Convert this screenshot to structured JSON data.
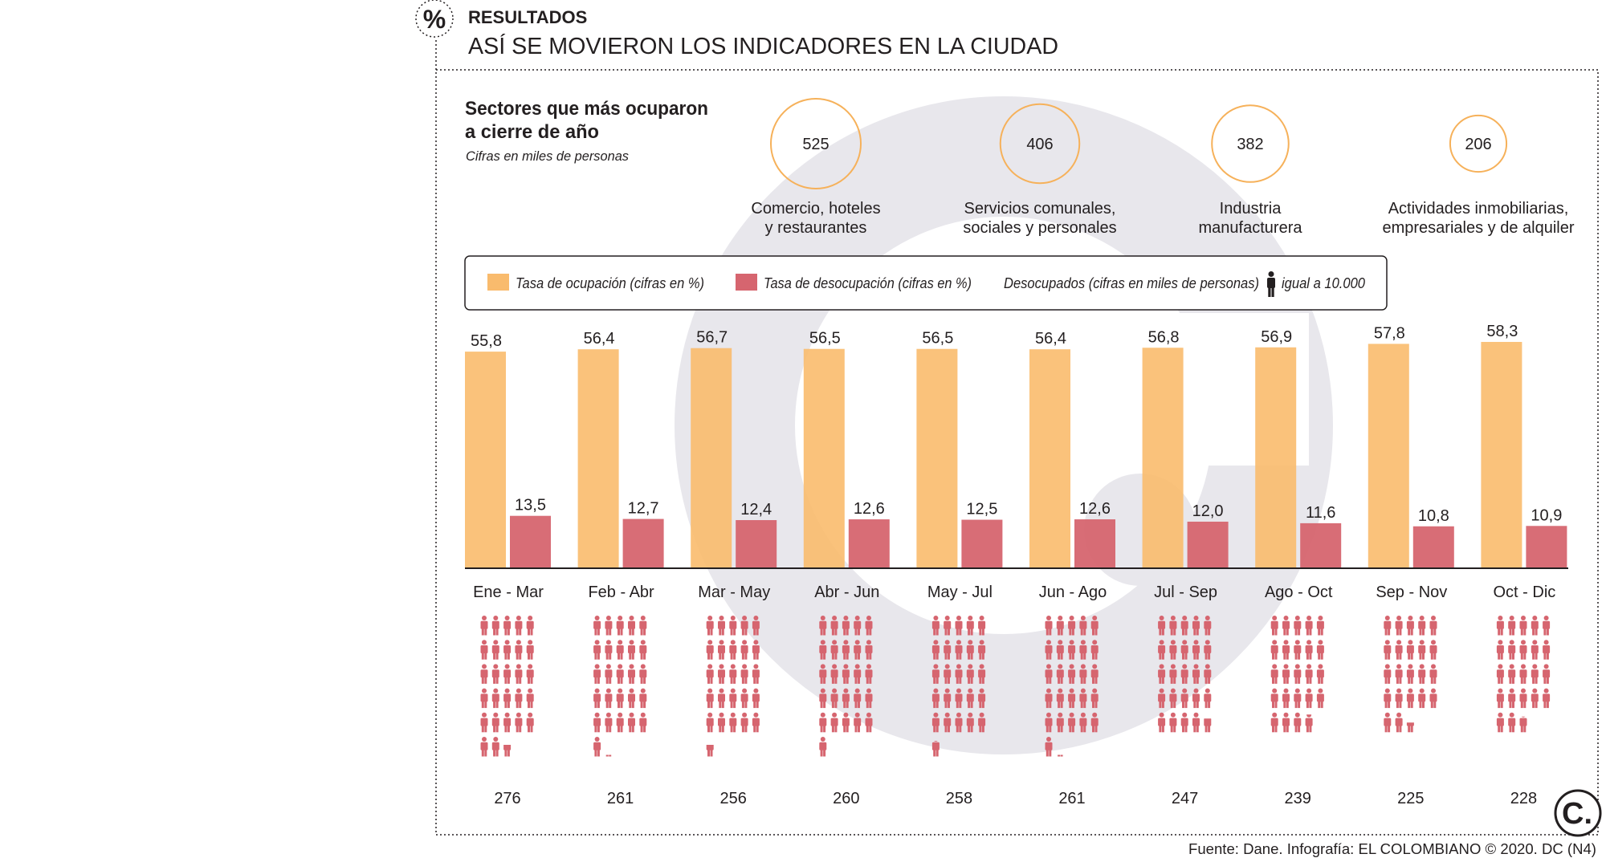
{
  "header": {
    "kicker": "RESULTADOS",
    "title": "ASÍ SE MOVIERON LOS INDICADORES EN LA CIUDAD",
    "badge_symbol": "%"
  },
  "sectors_panel": {
    "title_line1": "Sectores que más ocuparon",
    "title_line2": "a cierre de año",
    "subtitle": "Cifras en miles de personas"
  },
  "legend": {
    "items": [
      {
        "label": "Tasa de ocupación (cifras en %)",
        "color": "#f9bb6d"
      },
      {
        "label": "Tasa de desocupación (cifras en %)",
        "color": "#d6656f"
      }
    ],
    "icon_label": "Desocupados (cifras en miles de personas)",
    "icon_value_label": "igual a 10.000"
  },
  "colors": {
    "occupation": "#f9bb6d",
    "unemployment": "#d6656f",
    "icons": "#d6656f",
    "circle_stroke": "#f6b15a",
    "watermark": "#e8e7ec"
  },
  "footer": {
    "source": "Fuente: Dane. Infografía: EL COLOMBIANO © 2020. DC (N4)",
    "logo_text": "C."
  },
  "chart_data": [
    {
      "type": "bubble",
      "title": "Sectores que más ocuparon a cierre de año",
      "subtitle": "Cifras en miles de personas",
      "items": [
        {
          "label_line1": "Comercio, hoteles",
          "label_line2": "y restaurantes",
          "value": 525
        },
        {
          "label_line1": "Servicios comunales,",
          "label_line2": "sociales y personales",
          "value": 406
        },
        {
          "label_line1": "Industria",
          "label_line2": "manufacturera",
          "value": 382
        },
        {
          "label_line1": "Actividades inmobiliarias,",
          "label_line2": "empresariales y de alquiler",
          "value": 206
        }
      ]
    },
    {
      "type": "bar",
      "title": "ASÍ SE MOVIERON LOS INDICADORES EN LA CIUDAD",
      "categories": [
        "Ene - Mar",
        "Feb - Abr",
        "Mar - May",
        "Abr - Jun",
        "May - Jul",
        "Jun - Ago",
        "Jul - Sep",
        "Ago - Oct",
        "Sep - Nov",
        "Oct - Dic"
      ],
      "series": [
        {
          "name": "Tasa de ocupación (cifras en %)",
          "values": [
            55.8,
            56.4,
            56.7,
            56.5,
            56.5,
            56.4,
            56.8,
            56.9,
            57.8,
            58.3
          ],
          "labels": [
            "55,8",
            "56,4",
            "56,7",
            "56,5",
            "56,5",
            "56,4",
            "56,8",
            "56,9",
            "57,8",
            "58,3"
          ]
        },
        {
          "name": "Tasa de desocupación (cifras en %)",
          "values": [
            13.5,
            12.7,
            12.4,
            12.6,
            12.5,
            12.6,
            12.0,
            11.6,
            10.8,
            10.9
          ],
          "labels": [
            "13,5",
            "12,7",
            "12,4",
            "12,6",
            "12,5",
            "12,6",
            "12,0",
            "11,6",
            "10,8",
            "10,9"
          ]
        }
      ],
      "ylim": [
        0,
        58.3
      ],
      "xlabel": "",
      "ylabel": ""
    },
    {
      "type": "pictogram",
      "title": "Desocupados (cifras en miles de personas)",
      "unit": "igual a 10.000",
      "categories": [
        "Ene - Mar",
        "Feb - Abr",
        "Mar - May",
        "Abr - Jun",
        "May - Jul",
        "Jun - Ago",
        "Jul - Sep",
        "Ago - Oct",
        "Sep - Nov",
        "Oct - Dic"
      ],
      "values": [
        276,
        261,
        256,
        260,
        258,
        261,
        247,
        239,
        225,
        228
      ],
      "labels": [
        "276",
        "261",
        "256",
        "260",
        "258",
        "261",
        "247",
        "239",
        "225",
        "228"
      ]
    }
  ]
}
